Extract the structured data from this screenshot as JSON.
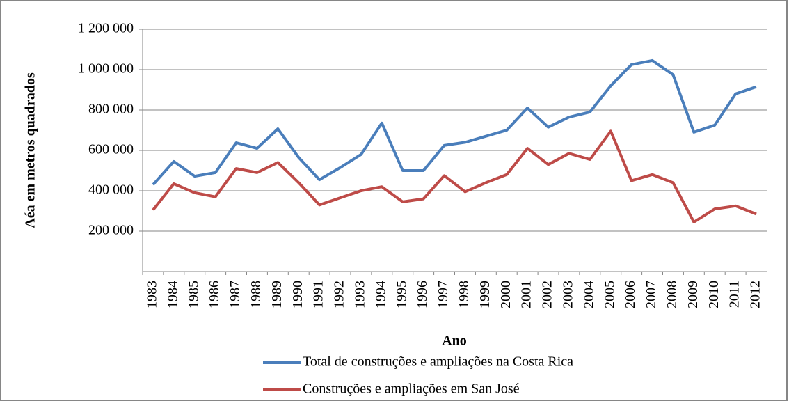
{
  "chart_data": {
    "type": "line",
    "y_axis_label": "Aéa em metros quadrados",
    "x_axis_label": "Ano",
    "categories": [
      "1983",
      "1984",
      "1985",
      "1986",
      "1987",
      "1988",
      "1989",
      "1990",
      "1991",
      "1992",
      "1993",
      "1994",
      "1995",
      "1996",
      "1997",
      "1998",
      "1999",
      "2000",
      "2001",
      "2002",
      "2003",
      "2004",
      "2005",
      "2006",
      "2007",
      "2008",
      "2009",
      "2010",
      "2011",
      "2012"
    ],
    "series": [
      {
        "name": "Total de construções e ampliações na Costa Rica",
        "color": "#4a7ebb",
        "values": [
          430000,
          545000,
          472000,
          490000,
          638000,
          610000,
          707000,
          565000,
          455000,
          515000,
          580000,
          735000,
          500000,
          500000,
          625000,
          640000,
          670000,
          700000,
          810000,
          715000,
          765000,
          790000,
          920000,
          1025000,
          1045000,
          975000,
          690000,
          725000,
          880000,
          915000
        ]
      },
      {
        "name": "Construções e ampliações  em San José",
        "color": "#be4b48",
        "values": [
          305000,
          435000,
          390000,
          370000,
          510000,
          490000,
          540000,
          440000,
          330000,
          365000,
          400000,
          420000,
          345000,
          360000,
          475000,
          395000,
          440000,
          480000,
          610000,
          530000,
          585000,
          555000,
          695000,
          450000,
          480000,
          440000,
          245000,
          310000,
          325000,
          285000
        ]
      }
    ],
    "ylim": [
      0,
      1200000
    ],
    "yticks": [
      {
        "value": 200000,
        "label": "200 000"
      },
      {
        "value": 400000,
        "label": "400 000"
      },
      {
        "value": 600000,
        "label": "600 000"
      },
      {
        "value": 800000,
        "label": "800 000"
      },
      {
        "value": 1000000,
        "label": "1 000 000"
      },
      {
        "value": 1200000,
        "label": "1 200 000"
      }
    ],
    "grid": true
  }
}
